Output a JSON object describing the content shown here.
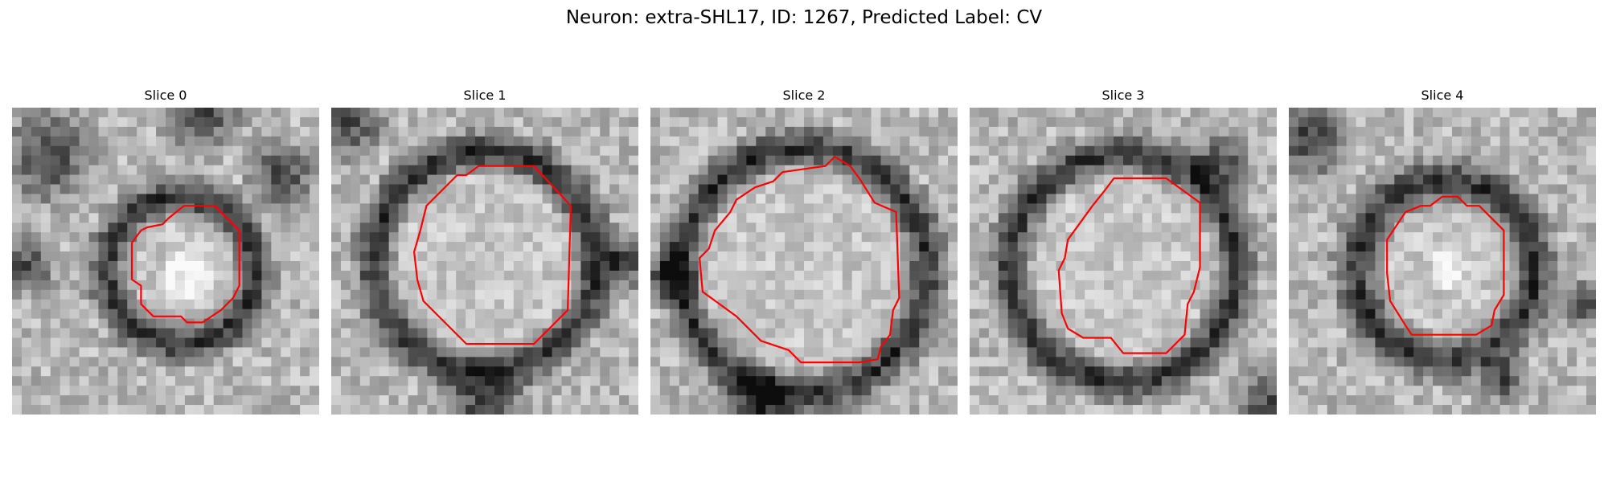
{
  "figure": {
    "title": "Neuron: extra-SHL17, ID: 1267, Predicted Label: CV",
    "outline_color": "#ff0000"
  },
  "panels": [
    {
      "title": "Slice 0",
      "image": "grayscale-em-crop-neuron-with-red-outline"
    },
    {
      "title": "Slice 1",
      "image": "grayscale-em-crop-neuron-with-red-outline"
    },
    {
      "title": "Slice 2",
      "image": "grayscale-em-crop-neuron-with-red-outline"
    },
    {
      "title": "Slice 3",
      "image": "grayscale-em-crop-neuron-with-red-outline"
    },
    {
      "title": "Slice 4",
      "image": "grayscale-em-crop-neuron-with-red-outline"
    }
  ]
}
